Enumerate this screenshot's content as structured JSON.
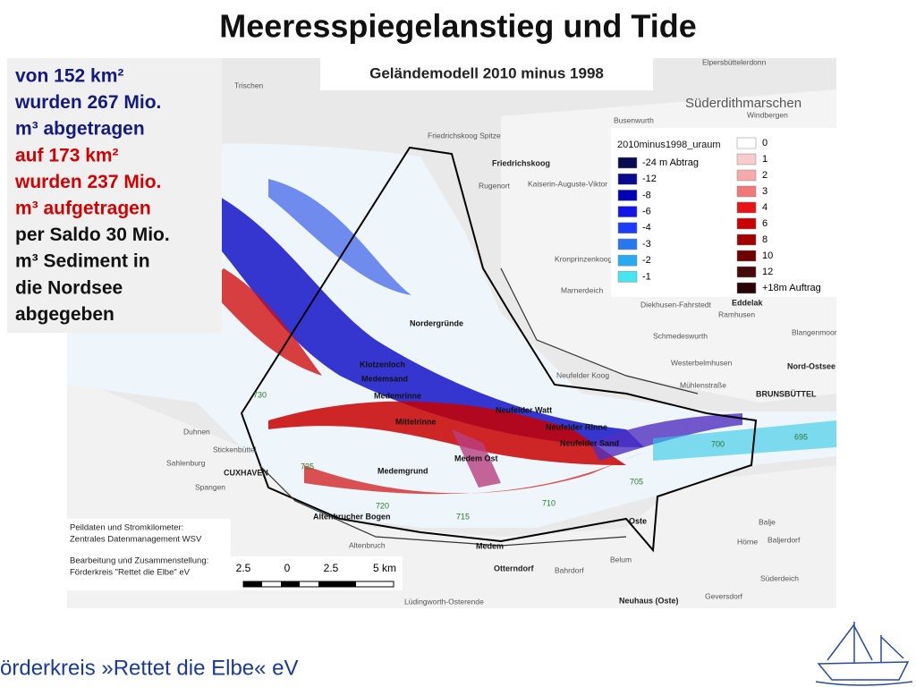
{
  "header": {
    "title": "Meeresspiegelanstieg und Tide"
  },
  "summary": {
    "eroded": [
      "von 152 km²",
      "wurden 267 Mio.",
      "m³ abgetragen"
    ],
    "deposited": [
      "auf 173 km²",
      "wurden 237 Mio.",
      "m³ aufgetragen"
    ],
    "balance": [
      "per Saldo 30 Mio.",
      "m³ Sediment in",
      "die Nordsee",
      "abgegeben"
    ]
  },
  "map": {
    "title": "Geländemodell 2010 minus 1998",
    "legend": {
      "title": "2010minus1998_uraum",
      "erosion": [
        {
          "label": "-24 m Abtrag",
          "color": "#0a0a50"
        },
        {
          "label": "-12",
          "color": "#0a0a8c"
        },
        {
          "label": "-8",
          "color": "#0000b4"
        },
        {
          "label": "-6",
          "color": "#1414e6"
        },
        {
          "label": "-4",
          "color": "#1e3cff"
        },
        {
          "label": "-3",
          "color": "#2878f0"
        },
        {
          "label": "-2",
          "color": "#28aaf0"
        },
        {
          "label": "-1",
          "color": "#46e6f0"
        }
      ],
      "deposition": [
        {
          "label": "0",
          "color": "#ffffff"
        },
        {
          "label": "1",
          "color": "#f8cccc"
        },
        {
          "label": "2",
          "color": "#f4aaaa"
        },
        {
          "label": "3",
          "color": "#f07878"
        },
        {
          "label": "4",
          "color": "#e61414"
        },
        {
          "label": "6",
          "color": "#c80000"
        },
        {
          "label": "8",
          "color": "#a00000"
        },
        {
          "label": "10",
          "color": "#6e0000"
        },
        {
          "label": "12",
          "color": "#460a0a"
        },
        {
          "label": "+18m Auftrag",
          "color": "#280505"
        }
      ]
    },
    "places": [
      "Trischen",
      "Friedrichskoog Spitze",
      "Friedrichskoog",
      "Rugenort",
      "Kaiserin-Auguste-Viktor",
      "Kronprinzenkoog",
      "Marnerdeich",
      "Nordergründe",
      "Klotzenloch",
      "Medemsand",
      "Medemrinne",
      "Mittelrinne",
      "Neufelder Watt",
      "Neufelder Rinne",
      "Neufelder Sand",
      "Medem Ost",
      "Medemgrund",
      "Altenbrucher Bogen",
      "Medem",
      "Otterndorf",
      "Oste",
      "Belum",
      "Neuhaus (Oste)",
      "CUXHAVEN",
      "Süderdithmarschen",
      "Elpersbüttelerdonn",
      "Windbergen",
      "Busenwurth",
      "Eddelak",
      "Ramhusen",
      "Diekhusen-Fahrstedt",
      "Schmedeswurth",
      "Westerbelmhusen",
      "Mühlenstraße",
      "BRUNSBÜTTEL",
      "Nord-Ostsee",
      "Blangenmoor",
      "Balje",
      "Hörne",
      "Baljerdorf",
      "Süderdeich",
      "Geversdorf",
      "Lüdingworth-Osterende",
      "Altenbruch",
      "Duhnen",
      "Sahlenburg",
      "Spangen",
      "Stickenbüttel",
      "Bahrdorf",
      "Neufelder Koog"
    ],
    "kilometers": [
      "730",
      "725",
      "720",
      "715",
      "710",
      "705",
      "700",
      "695"
    ],
    "credits": [
      "Peildaten und Stromkilometer:",
      "Zentrales Datenmanagement WSV",
      "Bearbeitung und Zusammenstellung:",
      "Förderkreis \"Rettet die Elbe\" eV"
    ],
    "scale": [
      "2.5",
      "0",
      "2.5",
      "5 km"
    ]
  },
  "footer": {
    "text": "örderkreis »Rettet die Elbe« eV"
  }
}
